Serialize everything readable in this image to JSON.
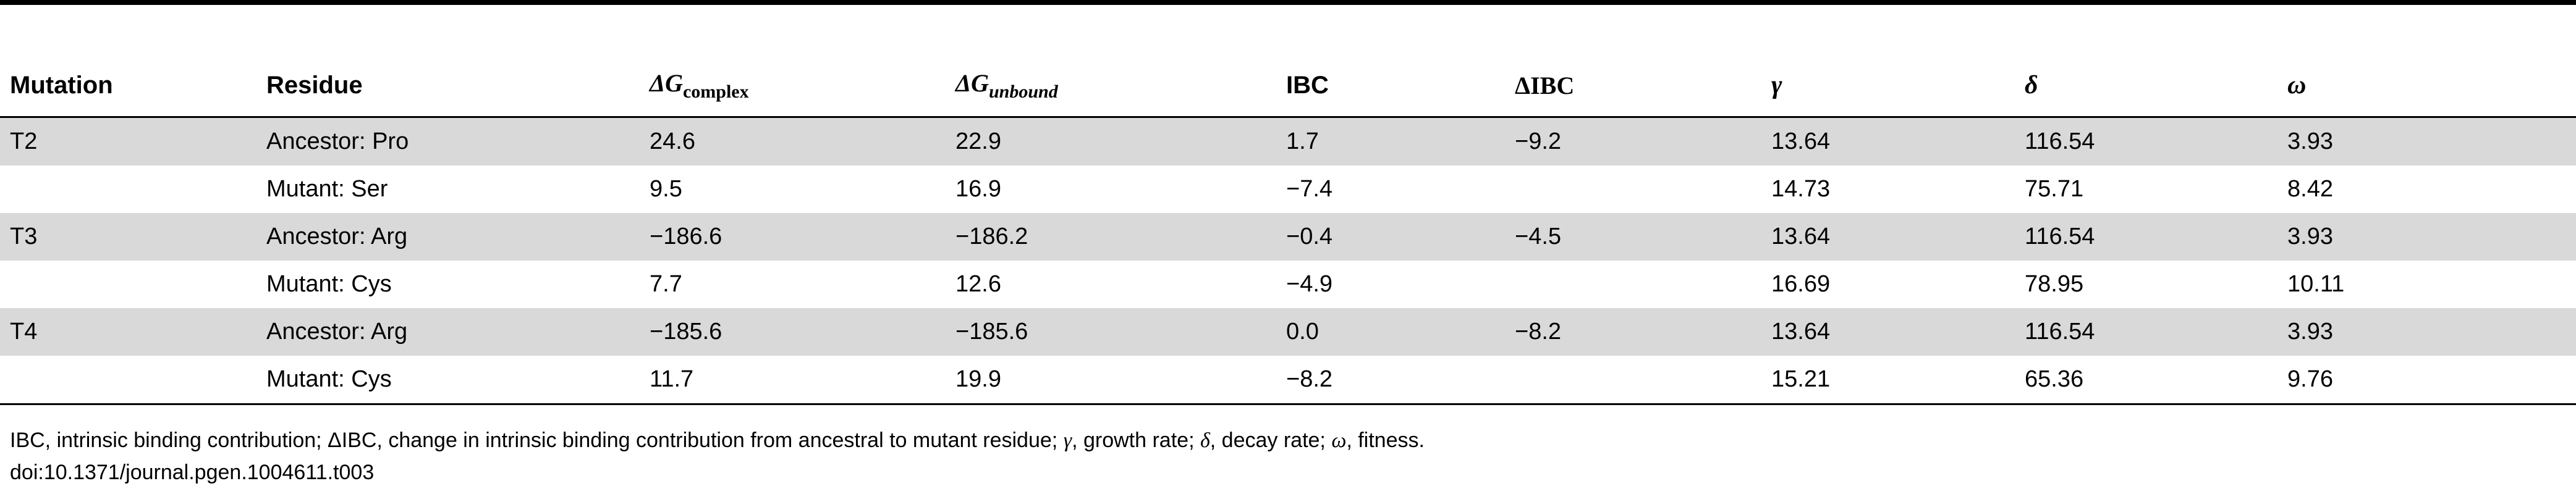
{
  "table": {
    "headers": {
      "mutation": "Mutation",
      "residue": "Residue",
      "dg_complex_symbol": "ΔG",
      "dg_complex_sub": "complex",
      "dg_unbound_symbol": "ΔG",
      "dg_unbound_sub": "unbound",
      "ibc": "IBC",
      "delta_ibc": "ΔIBC",
      "gamma": "γ",
      "delta": "δ",
      "omega": "ω"
    },
    "rows": [
      {
        "mutation": "T2",
        "residue": "Ancestor: Pro",
        "dg_complex": "24.6",
        "dg_unbound": "22.9",
        "ibc": "1.7",
        "delta_ibc": "−9.2",
        "gamma": "13.64",
        "delta": "116.54",
        "omega": "3.93"
      },
      {
        "mutation": "",
        "residue": "Mutant: Ser",
        "dg_complex": "9.5",
        "dg_unbound": "16.9",
        "ibc": "−7.4",
        "delta_ibc": "",
        "gamma": "14.73",
        "delta": "75.71",
        "omega": "8.42"
      },
      {
        "mutation": "T3",
        "residue": "Ancestor: Arg",
        "dg_complex": "−186.6",
        "dg_unbound": "−186.2",
        "ibc": "−0.4",
        "delta_ibc": "−4.5",
        "gamma": "13.64",
        "delta": "116.54",
        "omega": "3.93"
      },
      {
        "mutation": "",
        "residue": "Mutant: Cys",
        "dg_complex": "7.7",
        "dg_unbound": "12.6",
        "ibc": "−4.9",
        "delta_ibc": "",
        "gamma": "16.69",
        "delta": "78.95",
        "omega": "10.11"
      },
      {
        "mutation": "T4",
        "residue": "Ancestor: Arg",
        "dg_complex": "−185.6",
        "dg_unbound": "−185.6",
        "ibc": "0.0",
        "delta_ibc": "−8.2",
        "gamma": "13.64",
        "delta": "116.54",
        "omega": "3.93"
      },
      {
        "mutation": "",
        "residue": "Mutant: Cys",
        "dg_complex": "11.7",
        "dg_unbound": "19.9",
        "ibc": "−8.2",
        "delta_ibc": "",
        "gamma": "15.21",
        "delta": "65.36",
        "omega": "9.76"
      }
    ]
  },
  "footnote": {
    "part1": "IBC, intrinsic binding contribution; ΔIBC, change in intrinsic binding contribution from ancestral to mutant residue; ",
    "gamma": "γ",
    "part2": ", growth rate; ",
    "delta": "δ",
    "part3": ", decay rate; ",
    "omega": "ω",
    "part4": ", fitness."
  },
  "doi": "doi:10.1371/journal.pgen.1004611.t003",
  "colors": {
    "row_shade": "#d9d9d9",
    "rule": "#000000"
  }
}
